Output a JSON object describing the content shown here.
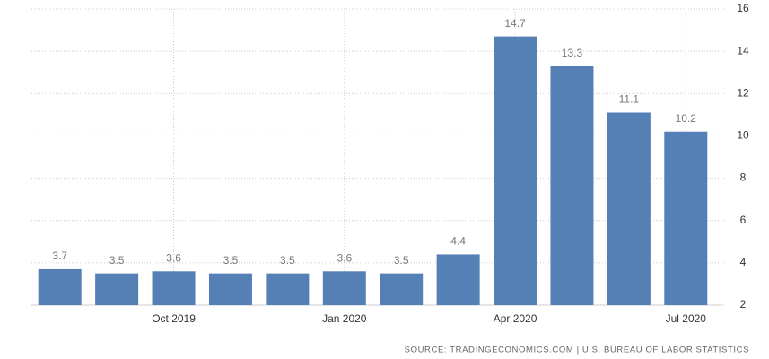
{
  "chart_data": {
    "type": "bar",
    "categories": [
      null,
      null,
      "Oct 2019",
      null,
      null,
      "Jan 2020",
      null,
      null,
      "Apr 2020",
      null,
      null,
      "Jul 2020"
    ],
    "values": [
      3.7,
      3.5,
      3.6,
      3.5,
      3.5,
      3.6,
      3.5,
      4.4,
      14.7,
      13.3,
      11.1,
      10.2
    ],
    "color": "#5480b6",
    "ylim": [
      2,
      16
    ],
    "yticks": [
      2,
      4,
      6,
      8,
      10,
      12,
      14,
      16
    ],
    "grid": true,
    "source": "SOURCE: TRADINGECONOMICS.COM | U.S. BUREAU OF LABOR STATISTICS"
  }
}
